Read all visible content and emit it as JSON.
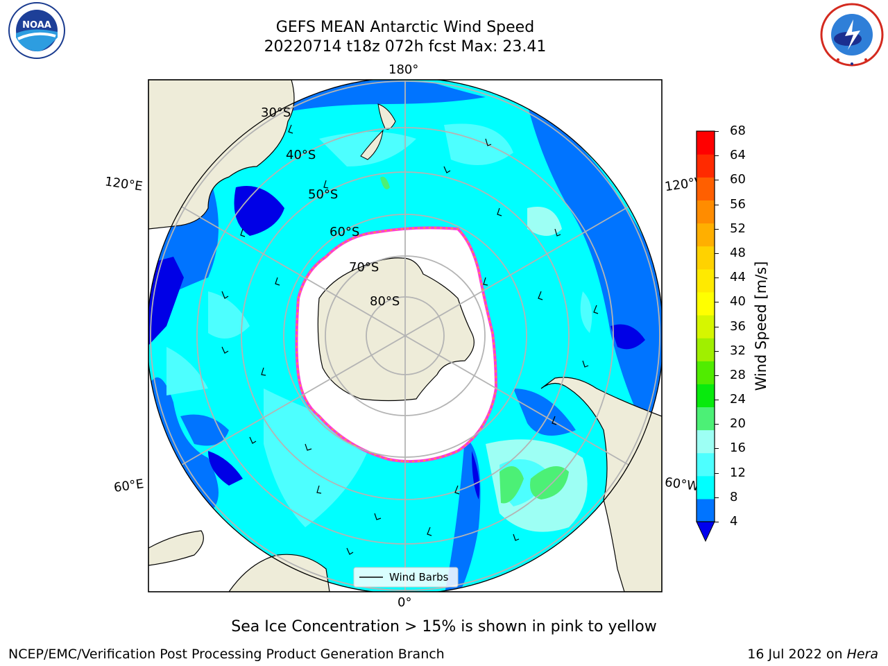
{
  "header": {
    "title": "GEFS MEAN Antarctic Wind Speed",
    "subtitle": "20220714 t18z 072h fcst   Max: 23.41"
  },
  "logos": {
    "left": {
      "label": "NOAA",
      "ring_text": "NATIONAL OCEANIC AND ATMOSPHERIC ADMINISTRATION · U.S. DEPARTMENT OF COMMERCE"
    },
    "right": {
      "ring_text": "NATIONAL WEATHER SERVICE"
    }
  },
  "map": {
    "projection": "south-polar-stereographic",
    "longitude_labels": {
      "top": "180°",
      "bottom": "0°",
      "left_upper": "120°E",
      "left_lower": "60°E",
      "right_upper": "120°W",
      "right_lower": "60°W"
    },
    "latitude_labels": [
      "30°S",
      "40°S",
      "50°S",
      "60°S",
      "70°S",
      "80°S"
    ],
    "legend": {
      "label": "Wind Barbs"
    },
    "colors": {
      "land": "#eeecd9",
      "ocean_low": "#0000e6",
      "ocean_mid": "#00ffff",
      "ice": "#ffffff",
      "ice_edge": "#ff3cd2",
      "grid": "#b4b4b4"
    }
  },
  "colorbar": {
    "label": "Wind Speed [m/s]",
    "ticks": [
      "4",
      "8",
      "12",
      "16",
      "20",
      "24",
      "28",
      "32",
      "36",
      "40",
      "44",
      "48",
      "52",
      "56",
      "60",
      "64",
      "68"
    ],
    "colors": [
      "#0074ff",
      "#00ffff",
      "#4dffff",
      "#9dfff4",
      "#4cf076",
      "#08ea0d",
      "#50ec00",
      "#a0ef00",
      "#d6f600",
      "#ffff00",
      "#ffea00",
      "#ffd200",
      "#ffaf00",
      "#ff8c00",
      "#ff5f00",
      "#ff2a00",
      "#ff0000"
    ],
    "under_color": "#0000ee"
  },
  "footer": {
    "note": "Sea Ice Concentration > 15% is shown in pink to yellow",
    "left": "NCEP/EMC/Verification Post Processing Product Generation Branch",
    "date": "16 Jul 2022 on ",
    "machine": "Hera"
  }
}
